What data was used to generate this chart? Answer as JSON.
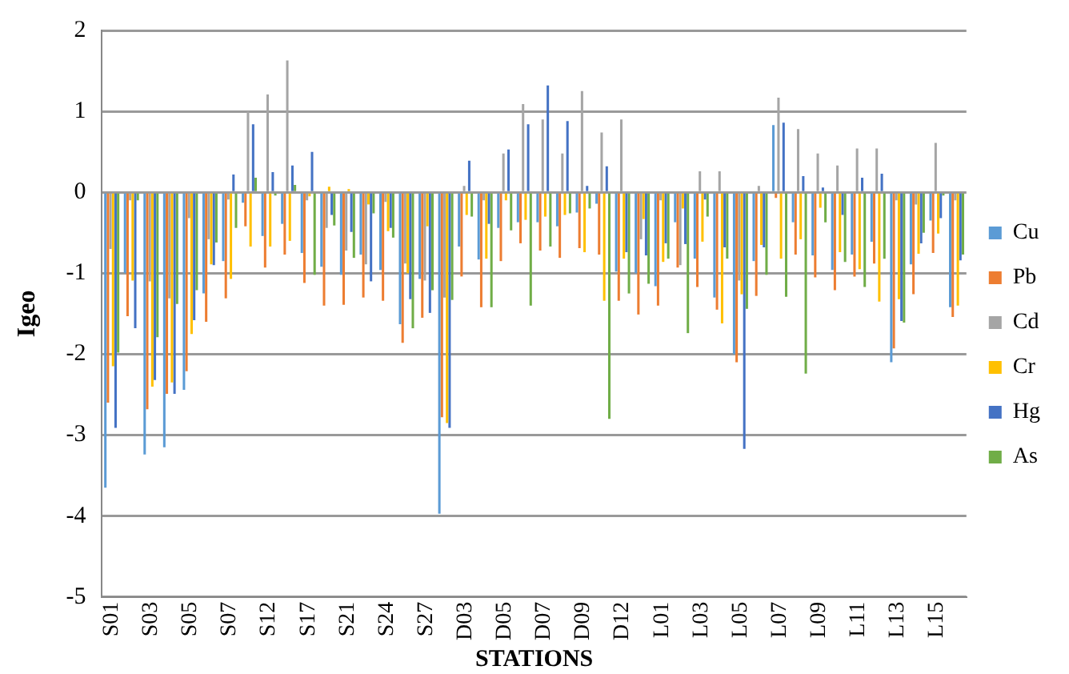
{
  "chart_data": {
    "type": "bar",
    "xlabel": "STATIONS",
    "ylabel": "Igeo",
    "categories": [
      "S01",
      null,
      "S03",
      null,
      "S05",
      null,
      "S07",
      null,
      "S12",
      null,
      "S17",
      null,
      "S21",
      null,
      "S24",
      null,
      "S27",
      null,
      "D03",
      null,
      "D05",
      null,
      "D07",
      null,
      "D09",
      null,
      "D12",
      null,
      "L01",
      null,
      "L03",
      null,
      "L05",
      null,
      "L07",
      null,
      "L09",
      null,
      "L11",
      null,
      "L13",
      null,
      "L15",
      null
    ],
    "series": [
      {
        "name": "Cu",
        "color": "#5b9bd5",
        "values": [
          -3.65,
          -1.0,
          -3.24,
          -3.15,
          -2.44,
          -1.25,
          -0.85,
          -0.13,
          -0.54,
          -0.39,
          -0.75,
          -0.92,
          -1.02,
          -0.77,
          -0.96,
          -1.63,
          -1.07,
          -3.97,
          -0.67,
          -0.83,
          -0.44,
          -0.37,
          -0.37,
          -0.42,
          -0.25,
          -0.14,
          -0.98,
          -1.0,
          -1.16,
          -0.37,
          -0.82,
          -1.3,
          -2.0,
          -0.85,
          0.83,
          -0.37,
          -0.78,
          -0.96,
          -0.77,
          -0.61,
          -2.1,
          -0.89,
          -0.35,
          -1.42
        ]
      },
      {
        "name": "Pb",
        "color": "#ed7d31",
        "values": [
          -2.6,
          -1.53,
          -2.68,
          -2.49,
          -2.21,
          -1.6,
          -1.31,
          -0.42,
          -0.93,
          -0.77,
          -1.12,
          -1.4,
          -1.39,
          -1.3,
          -1.34,
          -1.86,
          -1.55,
          -2.78,
          -1.04,
          -1.42,
          -0.85,
          -0.63,
          -0.72,
          -0.81,
          -0.69,
          -0.77,
          -1.34,
          -1.51,
          -1.4,
          -0.93,
          -1.17,
          -1.45,
          -2.1,
          -1.28,
          -0.07,
          -0.77,
          -1.05,
          -1.21,
          -1.04,
          -0.88,
          -1.93,
          -1.26,
          -0.75,
          -1.54
        ]
      },
      {
        "name": "Cd",
        "color": "#a5a5a5",
        "values": [
          -0.7,
          -0.1,
          -1.1,
          -1.31,
          -0.32,
          -0.58,
          -0.09,
          1.0,
          1.21,
          1.63,
          -0.1,
          -0.44,
          -0.72,
          -0.89,
          -0.12,
          -0.88,
          -1.09,
          -1.3,
          0.08,
          -0.1,
          0.48,
          1.09,
          0.9,
          0.48,
          1.25,
          0.74,
          0.9,
          -0.58,
          -0.1,
          -0.9,
          0.26,
          0.26,
          -1.09,
          0.08,
          1.17,
          0.78,
          0.48,
          0.33,
          0.54,
          0.54,
          -0.1,
          -0.15,
          0.61,
          -0.1
        ]
      },
      {
        "name": "Cr",
        "color": "#ffc000",
        "values": [
          -2.15,
          -1.09,
          -2.4,
          -2.35,
          -1.75,
          -0.89,
          -1.07,
          -0.67,
          -0.67,
          -0.6,
          -0.05,
          0.07,
          0.04,
          -0.15,
          -0.48,
          -1.0,
          -0.42,
          -2.85,
          -0.28,
          -0.82,
          -0.1,
          -0.34,
          -0.3,
          -0.28,
          -0.74,
          -1.34,
          -0.82,
          -0.33,
          -0.86,
          -0.2,
          -0.61,
          -1.62,
          -1.26,
          -0.65,
          -0.82,
          -0.58,
          -0.19,
          -0.74,
          -0.95,
          -1.35,
          -1.32,
          -0.76,
          -0.51,
          -1.4
        ]
      },
      {
        "name": "Hg",
        "color": "#4472c4",
        "values": [
          -2.91,
          -1.68,
          -2.32,
          -2.49,
          -1.58,
          -0.9,
          0.22,
          0.84,
          0.25,
          0.33,
          0.5,
          -0.28,
          -0.49,
          -1.1,
          -0.44,
          -1.32,
          -1.49,
          -2.91,
          0.39,
          -0.39,
          0.53,
          0.84,
          1.32,
          0.88,
          0.08,
          0.32,
          -0.74,
          -0.78,
          -0.63,
          -0.64,
          -0.09,
          -0.68,
          -3.17,
          -0.68,
          0.86,
          0.2,
          0.06,
          -0.28,
          0.18,
          0.23,
          -1.59,
          -0.63,
          -0.32,
          -0.84
        ]
      },
      {
        "name": "As",
        "color": "#70ad47",
        "values": [
          -1.98,
          -0.1,
          -1.79,
          -1.38,
          -1.21,
          -0.62,
          -0.44,
          0.18,
          -0.04,
          0.09,
          -1.02,
          -0.41,
          -0.81,
          -0.26,
          -0.56,
          -1.68,
          -1.21,
          -1.33,
          -0.3,
          -1.42,
          -0.47,
          -1.4,
          -0.67,
          -0.26,
          -0.2,
          -2.8,
          -1.25,
          -1.13,
          -0.82,
          -1.74,
          -0.3,
          -0.82,
          -1.44,
          -1.02,
          -1.29,
          -2.24,
          -0.37,
          -0.86,
          -1.17,
          -0.82,
          -1.61,
          -0.5,
          -0.04,
          -0.77
        ]
      }
    ],
    "ylim": [
      -5,
      2
    ],
    "yticks": [
      -5,
      -4,
      -3,
      -2,
      -1,
      0,
      1,
      2
    ],
    "grid": "y",
    "legend": "right"
  }
}
